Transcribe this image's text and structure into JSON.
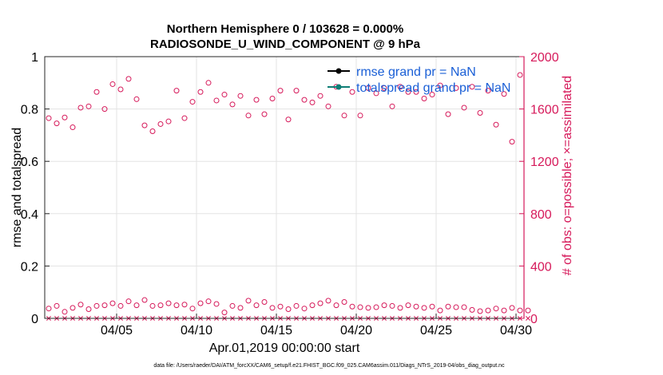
{
  "chart_data": {
    "type": "scatter",
    "title_line1": "Northern Hemisphere 0 / 103628 = 0.000%",
    "title_line2": "RADIOSONDE_U_WIND_COMPONENT @ 9 hPa",
    "xlabel": "Apr.01,2019 00:00:00 start",
    "ylabel_left": "rmse and totalspread",
    "ylabel_right": "# of obs: o=possible; ×=assimilated",
    "xlim": [
      0.5,
      30.5
    ],
    "ylim_left": [
      0,
      1
    ],
    "ylim_right": [
      0,
      2000
    ],
    "x_ticks": [
      {
        "day": 5,
        "label": "04/05"
      },
      {
        "day": 10,
        "label": "04/10"
      },
      {
        "day": 15,
        "label": "04/15"
      },
      {
        "day": 20,
        "label": "04/20"
      },
      {
        "day": 25,
        "label": "04/25"
      },
      {
        "day": 30,
        "label": "04/30"
      }
    ],
    "y_ticks_left": [
      "0",
      "0.2",
      "0.4",
      "0.6",
      "0.8",
      "1"
    ],
    "y_ticks_left_values": [
      0,
      0.2,
      0.4,
      0.6,
      0.8,
      1
    ],
    "y_ticks_right": [
      "0",
      "400",
      "800",
      "1200",
      "1600",
      "2000"
    ],
    "y_ticks_right_values": [
      0,
      400,
      800,
      1200,
      1600,
      2000
    ],
    "legend": [
      {
        "label": "rmse grand pr = NaN",
        "color": "#000000"
      },
      {
        "label": "totalspread grand pr = NaN",
        "color": "#0e7d74"
      }
    ],
    "series": [
      {
        "name": "possible obs (high)",
        "marker": "circle",
        "color": "#d6195a",
        "x": [
          0.75,
          1.25,
          1.75,
          2.25,
          2.75,
          3.25,
          3.75,
          4.25,
          4.75,
          5.25,
          5.75,
          6.25,
          6.75,
          7.25,
          7.75,
          8.25,
          8.75,
          9.25,
          9.75,
          10.25,
          10.75,
          11.25,
          11.75,
          12.25,
          12.75,
          13.25,
          13.75,
          14.25,
          14.75,
          15.25,
          15.75,
          16.25,
          16.75,
          17.25,
          17.75,
          18.25,
          18.75,
          19.25,
          19.75,
          20.25,
          20.75,
          21.25,
          21.75,
          22.25,
          22.75,
          23.25,
          23.75,
          24.25,
          24.75,
          25.25,
          25.75,
          26.25,
          26.75,
          27.25,
          27.75,
          28.25,
          28.75,
          29.25,
          29.75,
          30.25
        ],
        "y": [
          1530,
          1490,
          1535,
          1460,
          1610,
          1620,
          1730,
          1600,
          1790,
          1750,
          1830,
          1675,
          1475,
          1430,
          1485,
          1505,
          1740,
          1530,
          1655,
          1730,
          1800,
          1665,
          1710,
          1635,
          1700,
          1550,
          1670,
          1560,
          1680,
          1740,
          1520,
          1740,
          1670,
          1650,
          1700,
          1620,
          1770,
          1550,
          1730,
          1550,
          1760,
          1720,
          1760,
          1620,
          1770,
          1730,
          1730,
          1680,
          1710,
          1780,
          1560,
          1760,
          1610,
          1770,
          1570,
          1740,
          1480,
          1715,
          1350,
          1860
        ]
      },
      {
        "name": "possible obs (low)",
        "marker": "circle",
        "color": "#d6195a",
        "x": [
          0.75,
          1.25,
          1.75,
          2.25,
          2.75,
          3.25,
          3.75,
          4.25,
          4.75,
          5.25,
          5.75,
          6.25,
          6.75,
          7.25,
          7.75,
          8.25,
          8.75,
          9.25,
          9.75,
          10.25,
          10.75,
          11.25,
          11.75,
          12.25,
          12.75,
          13.25,
          13.75,
          14.25,
          14.75,
          15.25,
          15.75,
          16.25,
          16.75,
          17.25,
          17.75,
          18.25,
          18.75,
          19.25,
          19.75,
          20.25,
          20.75,
          21.25,
          21.75,
          22.25,
          22.75,
          23.25,
          23.75,
          24.25,
          24.75,
          25.25,
          25.75,
          26.25,
          26.75,
          27.25,
          27.75,
          28.25,
          28.75,
          29.25,
          29.75,
          30.25,
          30.75
        ],
        "y": [
          75,
          95,
          50,
          80,
          105,
          70,
          95,
          100,
          115,
          95,
          130,
          100,
          140,
          95,
          100,
          115,
          100,
          105,
          75,
          115,
          130,
          110,
          45,
          95,
          80,
          135,
          100,
          125,
          80,
          90,
          70,
          95,
          75,
          100,
          115,
          135,
          100,
          125,
          90,
          85,
          80,
          85,
          100,
          95,
          80,
          100,
          90,
          80,
          90,
          60,
          90,
          85,
          85,
          65,
          55,
          60,
          75,
          60,
          80,
          60,
          60
        ]
      },
      {
        "name": "assimilated obs",
        "marker": "x",
        "color": "#d6195a",
        "x": [
          0.75,
          1.25,
          1.75,
          2.25,
          2.75,
          3.25,
          3.75,
          4.25,
          4.75,
          5.25,
          5.75,
          6.25,
          6.75,
          7.25,
          7.75,
          8.25,
          8.75,
          9.25,
          9.75,
          10.25,
          10.75,
          11.25,
          11.75,
          12.25,
          12.75,
          13.25,
          13.75,
          14.25,
          14.75,
          15.25,
          15.75,
          16.25,
          16.75,
          17.25,
          17.75,
          18.25,
          18.75,
          19.25,
          19.75,
          20.25,
          20.75,
          21.25,
          21.75,
          22.25,
          22.75,
          23.25,
          23.75,
          24.25,
          24.75,
          25.25,
          25.75,
          26.25,
          26.75,
          27.25,
          27.75,
          28.25,
          28.75,
          29.25,
          29.75,
          30.25,
          30.75
        ],
        "y": [
          0,
          0,
          0,
          0,
          0,
          0,
          0,
          0,
          0,
          0,
          0,
          0,
          0,
          0,
          0,
          0,
          0,
          0,
          0,
          0,
          0,
          0,
          0,
          0,
          0,
          0,
          0,
          0,
          0,
          0,
          0,
          0,
          0,
          0,
          0,
          0,
          0,
          0,
          0,
          0,
          0,
          0,
          0,
          0,
          0,
          0,
          0,
          0,
          0,
          0,
          0,
          0,
          0,
          0,
          0,
          0,
          0,
          0,
          0,
          0,
          0
        ]
      }
    ],
    "grid": true
  },
  "footnote": "data file: /Users/raeder/DAI/ATM_forcXX/CAM6_setup/f.e21.FHIST_BGC.f09_025.CAM6assim.011/Diags_NTrS_2019-04/obs_diag_output.nc"
}
